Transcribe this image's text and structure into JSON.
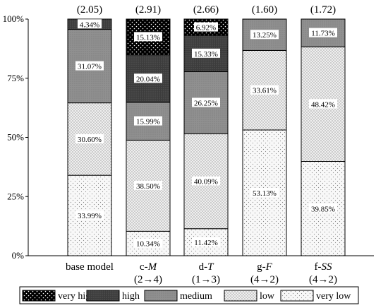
{
  "chart_data": {
    "type": "bar",
    "stacked": true,
    "percent": true,
    "title": "",
    "xlabel": "",
    "ylabel": "",
    "ylim": [
      0,
      100
    ],
    "yticks": [
      "0%",
      "25%",
      "50%",
      "75%",
      "100%"
    ],
    "grid": false,
    "legend_position": "bottom",
    "categories": [
      {
        "line1": "base model",
        "line2": "",
        "pre": "",
        "ital": "",
        "score": "(2.05)"
      },
      {
        "line1": "",
        "line2": "(2→4)",
        "pre": "c-",
        "ital": "M",
        "score": "(2.91)"
      },
      {
        "line1": "",
        "line2": "(1→3)",
        "pre": "d-",
        "ital": "T",
        "score": "(2.66)"
      },
      {
        "line1": "",
        "line2": "(4→2)",
        "pre": "g-",
        "ital": "F",
        "score": "(1.60)"
      },
      {
        "line1": "",
        "line2": "(4→2)",
        "pre": "f-",
        "ital": "SS",
        "score": "(1.72)"
      }
    ],
    "series": [
      {
        "name": "very low",
        "color": "#f7f7f7",
        "pattern": "sparse-dots",
        "values": [
          33.99,
          10.34,
          11.42,
          53.13,
          39.85
        ],
        "labels": [
          "33.99%",
          "10.34%",
          "11.42%",
          "53.13%",
          "39.85%"
        ]
      },
      {
        "name": "low",
        "color": "#eeeeee",
        "pattern": "dense-dots",
        "values": [
          30.6,
          38.5,
          40.09,
          33.61,
          48.42
        ],
        "labels": [
          "30.60%",
          "38.50%",
          "40.09%",
          "33.61%",
          "48.42%"
        ]
      },
      {
        "name": "medium",
        "color": "#8c8c8c",
        "pattern": "fine-dots",
        "values": [
          31.07,
          15.99,
          26.25,
          13.25,
          11.73
        ],
        "labels": [
          "31.07%",
          "15.99%",
          "26.25%",
          "13.25%",
          "11.73%"
        ]
      },
      {
        "name": "high",
        "color": "#404040",
        "pattern": "dark",
        "values": [
          4.34,
          20.04,
          15.33,
          0,
          0
        ],
        "labels": [
          "4.34%",
          "20.04%",
          "15.33%",
          "",
          ""
        ]
      },
      {
        "name": "very high",
        "color": "#000000",
        "pattern": "white-dots",
        "values": [
          0,
          15.13,
          6.92,
          0,
          0
        ],
        "labels": [
          "",
          "15.13%",
          "6.92%",
          "",
          ""
        ]
      }
    ],
    "legend": [
      "very high",
      "high",
      "medium",
      "low",
      "very low"
    ]
  }
}
